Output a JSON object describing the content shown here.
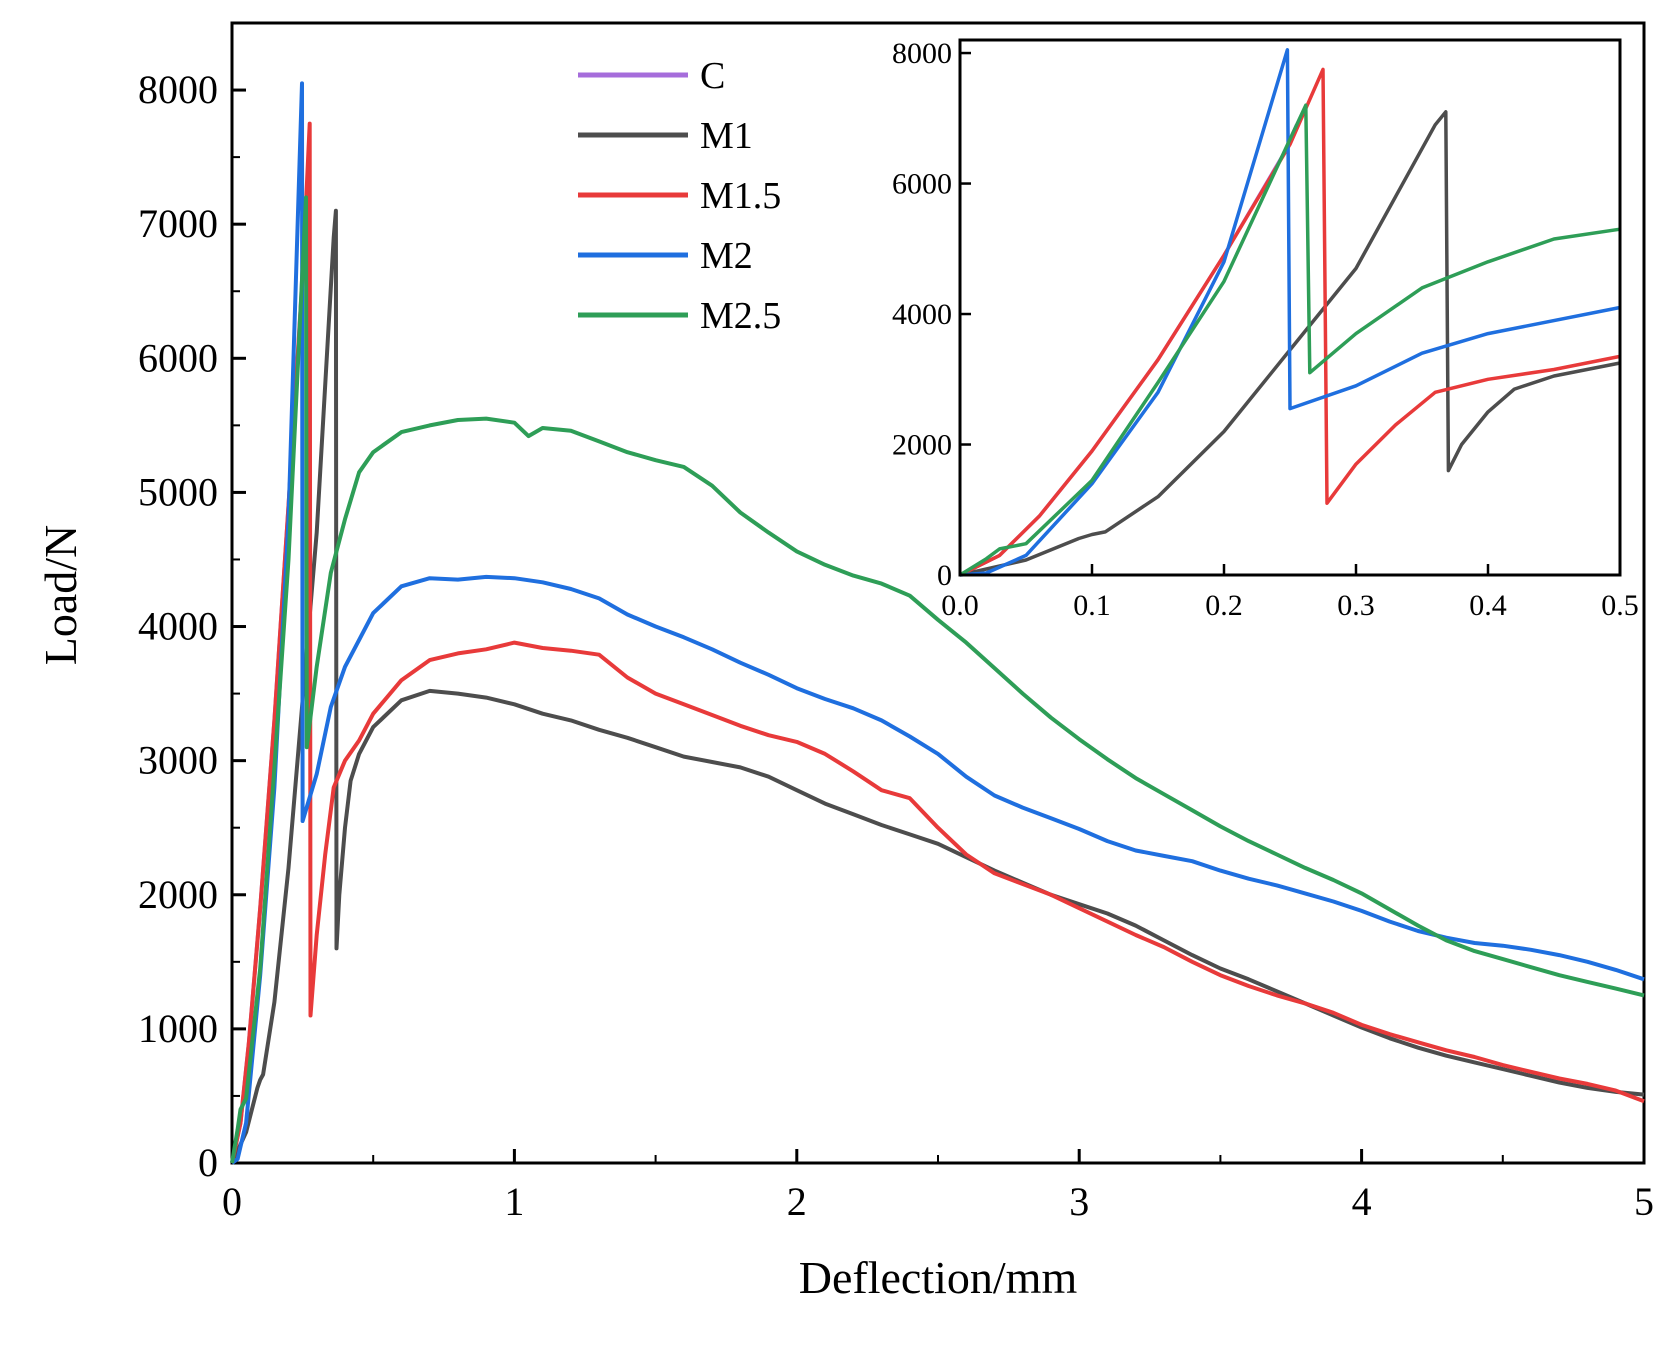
{
  "chart_data": {
    "type": "line",
    "xlabel": "Deflection/mm",
    "ylabel": "Load/N",
    "xlim": [
      0,
      5
    ],
    "ylim": [
      0,
      8500
    ],
    "x_ticks": [
      "0",
      "1",
      "2",
      "3",
      "4",
      "5"
    ],
    "y_ticks": [
      "0",
      "1000",
      "2000",
      "3000",
      "4000",
      "5000",
      "6000",
      "7000",
      "8000"
    ],
    "grid": false,
    "legend_position": "top-center",
    "series": [
      {
        "name": "C",
        "color": "#a66ddb",
        "points": [
          [
            0,
            0
          ],
          [
            0.03,
            300
          ],
          [
            0.06,
            900
          ],
          [
            0.1,
            1900
          ],
          [
            0.15,
            3300
          ],
          [
            0.2,
            4900
          ],
          [
            0.245,
            6450
          ],
          [
            0.255,
            6900
          ]
        ]
      },
      {
        "name": "M1",
        "color": "#4d4d4d",
        "points": [
          [
            0,
            0
          ],
          [
            0.05,
            230
          ],
          [
            0.09,
            560
          ],
          [
            0.1,
            620
          ],
          [
            0.11,
            660
          ],
          [
            0.15,
            1200
          ],
          [
            0.2,
            2200
          ],
          [
            0.25,
            3450
          ],
          [
            0.3,
            4700
          ],
          [
            0.36,
            6900
          ],
          [
            0.368,
            7100
          ],
          [
            0.37,
            1600
          ],
          [
            0.38,
            2000
          ],
          [
            0.4,
            2500
          ],
          [
            0.42,
            2850
          ],
          [
            0.45,
            3050
          ],
          [
            0.5,
            3250
          ],
          [
            0.6,
            3450
          ],
          [
            0.7,
            3520
          ],
          [
            0.8,
            3500
          ],
          [
            0.9,
            3470
          ],
          [
            1.0,
            3420
          ],
          [
            1.1,
            3350
          ],
          [
            1.2,
            3300
          ],
          [
            1.3,
            3230
          ],
          [
            1.4,
            3170
          ],
          [
            1.5,
            3100
          ],
          [
            1.6,
            3030
          ],
          [
            1.7,
            2990
          ],
          [
            1.8,
            2950
          ],
          [
            1.9,
            2880
          ],
          [
            2.0,
            2780
          ],
          [
            2.1,
            2680
          ],
          [
            2.2,
            2600
          ],
          [
            2.3,
            2520
          ],
          [
            2.4,
            2450
          ],
          [
            2.5,
            2380
          ],
          [
            2.6,
            2280
          ],
          [
            2.7,
            2180
          ],
          [
            2.8,
            2090
          ],
          [
            2.9,
            2000
          ],
          [
            3.0,
            1930
          ],
          [
            3.1,
            1860
          ],
          [
            3.2,
            1770
          ],
          [
            3.3,
            1660
          ],
          [
            3.4,
            1550
          ],
          [
            3.5,
            1450
          ],
          [
            3.6,
            1370
          ],
          [
            3.7,
            1280
          ],
          [
            3.8,
            1190
          ],
          [
            3.9,
            1100
          ],
          [
            4.0,
            1010
          ],
          [
            4.1,
            930
          ],
          [
            4.2,
            860
          ],
          [
            4.3,
            800
          ],
          [
            4.4,
            750
          ],
          [
            4.5,
            700
          ],
          [
            4.6,
            650
          ],
          [
            4.7,
            600
          ],
          [
            4.8,
            560
          ],
          [
            4.9,
            530
          ],
          [
            5.0,
            510
          ]
        ]
      },
      {
        "name": "M1.5",
        "color": "#e83a3a",
        "points": [
          [
            0,
            0
          ],
          [
            0.03,
            300
          ],
          [
            0.06,
            900
          ],
          [
            0.1,
            1900
          ],
          [
            0.15,
            3300
          ],
          [
            0.2,
            4900
          ],
          [
            0.25,
            6600
          ],
          [
            0.275,
            7750
          ],
          [
            0.278,
            1100
          ],
          [
            0.3,
            1700
          ],
          [
            0.33,
            2300
          ],
          [
            0.36,
            2800
          ],
          [
            0.4,
            3000
          ],
          [
            0.45,
            3150
          ],
          [
            0.5,
            3350
          ],
          [
            0.6,
            3600
          ],
          [
            0.7,
            3750
          ],
          [
            0.8,
            3800
          ],
          [
            0.9,
            3830
          ],
          [
            1.0,
            3880
          ],
          [
            1.1,
            3840
          ],
          [
            1.2,
            3820
          ],
          [
            1.3,
            3790
          ],
          [
            1.4,
            3620
          ],
          [
            1.5,
            3500
          ],
          [
            1.6,
            3420
          ],
          [
            1.7,
            3340
          ],
          [
            1.8,
            3260
          ],
          [
            1.9,
            3190
          ],
          [
            2.0,
            3140
          ],
          [
            2.1,
            3050
          ],
          [
            2.2,
            2920
          ],
          [
            2.3,
            2780
          ],
          [
            2.4,
            2720
          ],
          [
            2.5,
            2500
          ],
          [
            2.6,
            2300
          ],
          [
            2.7,
            2160
          ],
          [
            2.8,
            2080
          ],
          [
            2.9,
            2000
          ],
          [
            3.0,
            1900
          ],
          [
            3.1,
            1800
          ],
          [
            3.2,
            1700
          ],
          [
            3.3,
            1610
          ],
          [
            3.4,
            1500
          ],
          [
            3.5,
            1400
          ],
          [
            3.6,
            1320
          ],
          [
            3.7,
            1250
          ],
          [
            3.8,
            1190
          ],
          [
            3.9,
            1120
          ],
          [
            4.0,
            1030
          ],
          [
            4.1,
            960
          ],
          [
            4.2,
            900
          ],
          [
            4.3,
            840
          ],
          [
            4.4,
            790
          ],
          [
            4.5,
            730
          ],
          [
            4.6,
            680
          ],
          [
            4.7,
            630
          ],
          [
            4.8,
            590
          ],
          [
            4.9,
            540
          ],
          [
            5.0,
            460
          ]
        ]
      },
      {
        "name": "M2",
        "color": "#1f6fdf",
        "points": [
          [
            0,
            0
          ],
          [
            0.02,
            30
          ],
          [
            0.05,
            300
          ],
          [
            0.1,
            1400
          ],
          [
            0.15,
            2800
          ],
          [
            0.2,
            4800
          ],
          [
            0.248,
            8050
          ],
          [
            0.25,
            2550
          ],
          [
            0.3,
            2900
          ],
          [
            0.35,
            3400
          ],
          [
            0.4,
            3700
          ],
          [
            0.5,
            4100
          ],
          [
            0.6,
            4300
          ],
          [
            0.7,
            4360
          ],
          [
            0.8,
            4350
          ],
          [
            0.9,
            4370
          ],
          [
            1.0,
            4360
          ],
          [
            1.1,
            4330
          ],
          [
            1.2,
            4280
          ],
          [
            1.3,
            4210
          ],
          [
            1.4,
            4090
          ],
          [
            1.5,
            4000
          ],
          [
            1.6,
            3920
          ],
          [
            1.7,
            3830
          ],
          [
            1.8,
            3730
          ],
          [
            1.9,
            3640
          ],
          [
            2.0,
            3540
          ],
          [
            2.1,
            3460
          ],
          [
            2.2,
            3390
          ],
          [
            2.3,
            3300
          ],
          [
            2.4,
            3180
          ],
          [
            2.5,
            3050
          ],
          [
            2.6,
            2880
          ],
          [
            2.7,
            2740
          ],
          [
            2.8,
            2650
          ],
          [
            2.9,
            2570
          ],
          [
            3.0,
            2490
          ],
          [
            3.1,
            2400
          ],
          [
            3.2,
            2330
          ],
          [
            3.3,
            2290
          ],
          [
            3.4,
            2250
          ],
          [
            3.5,
            2180
          ],
          [
            3.6,
            2120
          ],
          [
            3.7,
            2070
          ],
          [
            3.8,
            2010
          ],
          [
            3.9,
            1950
          ],
          [
            4.0,
            1880
          ],
          [
            4.1,
            1800
          ],
          [
            4.2,
            1730
          ],
          [
            4.3,
            1680
          ],
          [
            4.4,
            1640
          ],
          [
            4.5,
            1620
          ],
          [
            4.6,
            1590
          ],
          [
            4.7,
            1550
          ],
          [
            4.8,
            1500
          ],
          [
            4.9,
            1440
          ],
          [
            5.0,
            1370
          ]
        ]
      },
      {
        "name": "M2.5",
        "color": "#2e9e57",
        "points": [
          [
            0,
            0
          ],
          [
            0.02,
            250
          ],
          [
            0.03,
            400
          ],
          [
            0.05,
            480
          ],
          [
            0.1,
            1450
          ],
          [
            0.15,
            2950
          ],
          [
            0.2,
            4500
          ],
          [
            0.262,
            7200
          ],
          [
            0.265,
            3100
          ],
          [
            0.3,
            3700
          ],
          [
            0.35,
            4400
          ],
          [
            0.4,
            4800
          ],
          [
            0.45,
            5150
          ],
          [
            0.5,
            5300
          ],
          [
            0.6,
            5450
          ],
          [
            0.7,
            5500
          ],
          [
            0.8,
            5540
          ],
          [
            0.9,
            5550
          ],
          [
            1.0,
            5520
          ],
          [
            1.05,
            5420
          ],
          [
            1.1,
            5480
          ],
          [
            1.2,
            5460
          ],
          [
            1.3,
            5380
          ],
          [
            1.4,
            5300
          ],
          [
            1.5,
            5240
          ],
          [
            1.6,
            5190
          ],
          [
            1.7,
            5050
          ],
          [
            1.8,
            4850
          ],
          [
            1.9,
            4700
          ],
          [
            2.0,
            4560
          ],
          [
            2.1,
            4460
          ],
          [
            2.2,
            4380
          ],
          [
            2.3,
            4320
          ],
          [
            2.4,
            4230
          ],
          [
            2.5,
            4050
          ],
          [
            2.6,
            3880
          ],
          [
            2.7,
            3690
          ],
          [
            2.8,
            3500
          ],
          [
            2.9,
            3320
          ],
          [
            3.0,
            3160
          ],
          [
            3.1,
            3010
          ],
          [
            3.2,
            2870
          ],
          [
            3.3,
            2750
          ],
          [
            3.4,
            2630
          ],
          [
            3.5,
            2510
          ],
          [
            3.6,
            2400
          ],
          [
            3.7,
            2300
          ],
          [
            3.8,
            2200
          ],
          [
            3.9,
            2110
          ],
          [
            4.0,
            2010
          ],
          [
            4.1,
            1890
          ],
          [
            4.2,
            1770
          ],
          [
            4.3,
            1660
          ],
          [
            4.4,
            1580
          ],
          [
            4.5,
            1520
          ],
          [
            4.6,
            1460
          ],
          [
            4.7,
            1400
          ],
          [
            4.8,
            1350
          ],
          [
            4.9,
            1300
          ],
          [
            5.0,
            1250
          ]
        ]
      }
    ],
    "inset": {
      "xlim": [
        0,
        0.5
      ],
      "ylim": [
        0,
        8200
      ],
      "x_ticks": [
        "0.0",
        "0.1",
        "0.2",
        "0.3",
        "0.4",
        "0.5"
      ],
      "y_ticks": [
        "0",
        "2000",
        "4000",
        "6000",
        "8000"
      ],
      "y_tick_values": [
        0,
        2000,
        4000,
        6000,
        8000
      ],
      "x_tick_values": [
        0,
        0.1,
        0.2,
        0.3,
        0.4,
        0.5
      ]
    }
  }
}
